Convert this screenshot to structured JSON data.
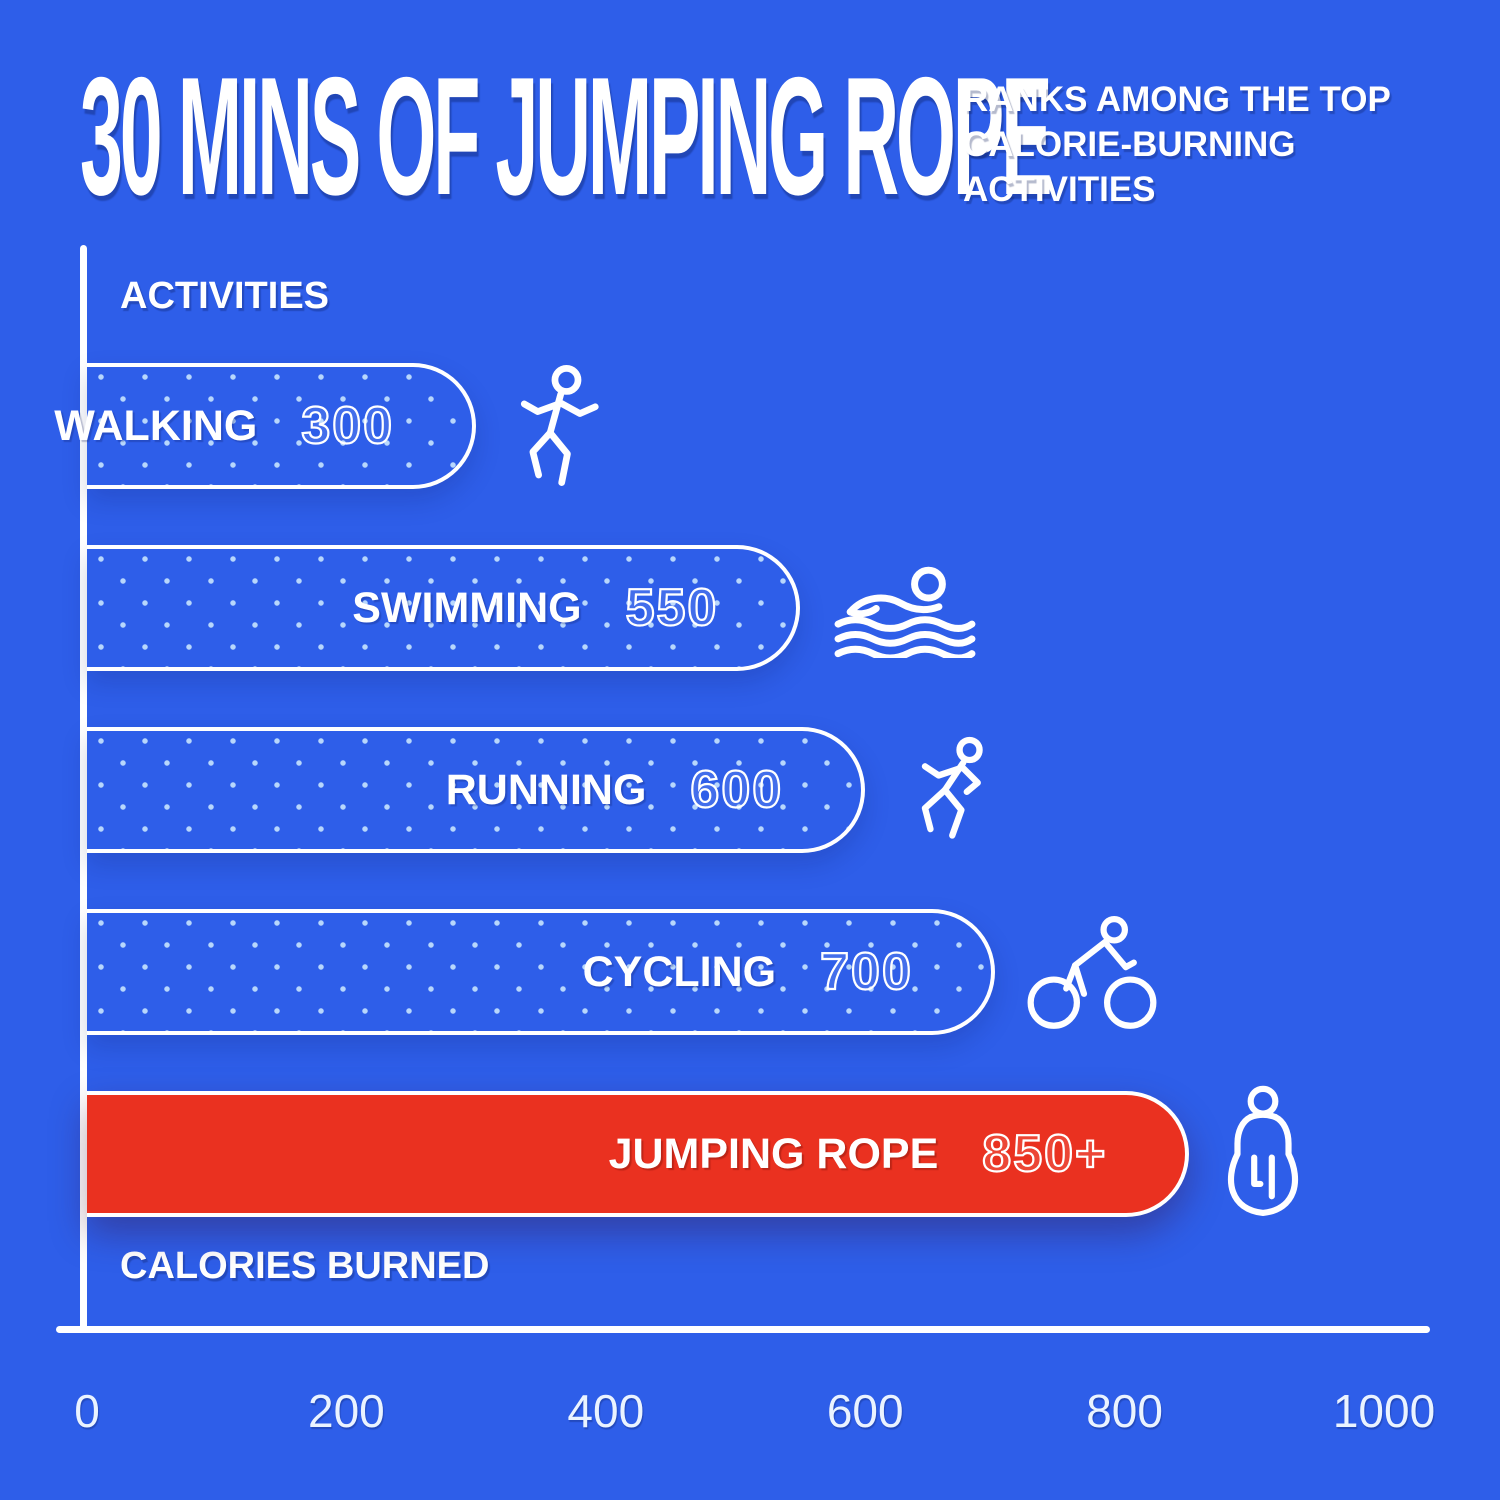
{
  "header": {
    "title": "30 MINS OF JUMPING ROPE",
    "subtitle_lines": [
      "RANKS AMONG THE TOP",
      "CALORIE-BURNING",
      "ACTIVITIES"
    ]
  },
  "axes": {
    "y_label": "ACTIVITIES",
    "x_label": "CALORIES BURNED"
  },
  "colors": {
    "background": "#2e5ee9",
    "bar_outline": "#ffffff",
    "highlight_red": "#ea3120",
    "dot_pattern": "#d0ecff"
  },
  "chart_data": {
    "type": "bar",
    "orientation": "horizontal",
    "title": "30 MINS OF JUMPING ROPE",
    "subtitle": "RANKS AMONG THE TOP CALORIE-BURNING ACTIVITIES",
    "xlabel": "CALORIES BURNED",
    "ylabel": "ACTIVITIES",
    "xlim": [
      0,
      1000
    ],
    "x_ticks": [
      0,
      200,
      400,
      600,
      800,
      1000
    ],
    "grid": false,
    "legend": false,
    "categories": [
      "WALKING",
      "SWIMMING",
      "RUNNING",
      "CYCLING",
      "JUMPING ROPE"
    ],
    "values": [
      300,
      550,
      600,
      700,
      850
    ],
    "bars": [
      {
        "label": "WALKING",
        "value": 300,
        "value_label": "300",
        "icon": "jogging-person-icon",
        "highlight": false
      },
      {
        "label": "SWIMMING",
        "value": 550,
        "value_label": "550",
        "icon": "swimmer-icon",
        "highlight": false
      },
      {
        "label": "RUNNING",
        "value": 600,
        "value_label": "600",
        "icon": "sprinter-icon",
        "highlight": false
      },
      {
        "label": "CYCLING",
        "value": 700,
        "value_label": "700",
        "icon": "cyclist-icon",
        "highlight": false
      },
      {
        "label": "JUMPING ROPE",
        "value": 850,
        "value_label": "850+",
        "icon": "jump-rope-person-icon",
        "highlight": true
      }
    ],
    "highlight_category": "JUMPING ROPE"
  }
}
